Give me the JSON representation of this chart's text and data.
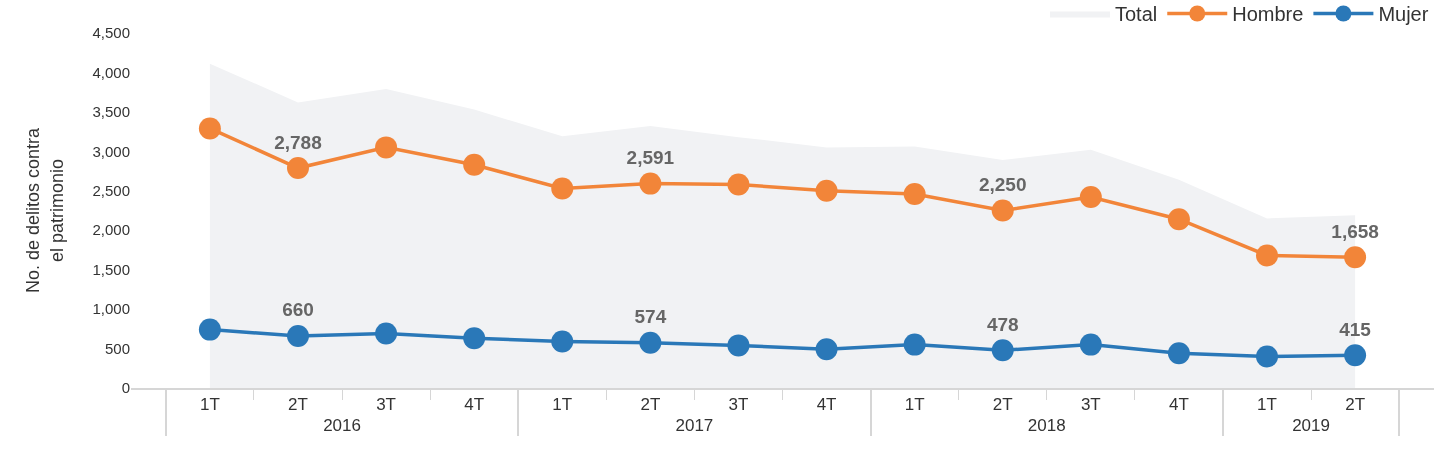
{
  "chart_data": {
    "type": "line",
    "ylabel": "No. de delitos contra\nel patrimonio",
    "categories": [
      "1T",
      "2T",
      "3T",
      "4T",
      "1T",
      "2T",
      "3T",
      "4T",
      "1T",
      "2T",
      "3T",
      "4T",
      "1T",
      "2T"
    ],
    "annotations": [
      "2016",
      "2017",
      "2018",
      "2019"
    ],
    "series": [
      {
        "name": "Total",
        "type": "area",
        "color": "#f1f2f4",
        "values": [
          4110,
          3620,
          3790,
          3530,
          3190,
          3320,
          3180,
          3050,
          3060,
          2890,
          3020,
          2640,
          2150,
          2190
        ]
      },
      {
        "name": "Hombre",
        "color": "#f28539",
        "marker": "circle",
        "values": [
          3290,
          2788,
          3050,
          2830,
          2530,
          2591,
          2580,
          2500,
          2460,
          2250,
          2420,
          2140,
          1680,
          1658
        ],
        "value_labels": [
          null,
          "2,788",
          null,
          null,
          null,
          "2,591",
          null,
          null,
          null,
          "2,250",
          null,
          null,
          null,
          "1,658"
        ]
      },
      {
        "name": "Mujer",
        "color": "#2a78b8",
        "marker": "circle",
        "values": [
          740,
          660,
          690,
          630,
          590,
          574,
          540,
          490,
          550,
          478,
          550,
          440,
          400,
          415
        ],
        "value_labels": [
          null,
          "660",
          null,
          null,
          null,
          "574",
          null,
          null,
          null,
          "478",
          null,
          null,
          null,
          "415"
        ]
      }
    ],
    "ylim": [
      0,
      4500
    ],
    "yticks": [
      0,
      500,
      {
        "value": 1000,
        "label": "1,000"
      },
      {
        "value": 1500,
        "label": "1,500"
      },
      {
        "value": 2000,
        "label": "2,000"
      },
      {
        "value": 2500,
        "label": "2,500"
      },
      {
        "value": 3000,
        "label": "3,000"
      },
      {
        "value": 3500,
        "label": "3,500"
      },
      {
        "value": 4000,
        "label": "4,000"
      },
      {
        "value": 4500,
        "label": "4,500"
      }
    ],
    "grid": false,
    "legend": "top right",
    "line_style": "solid"
  }
}
